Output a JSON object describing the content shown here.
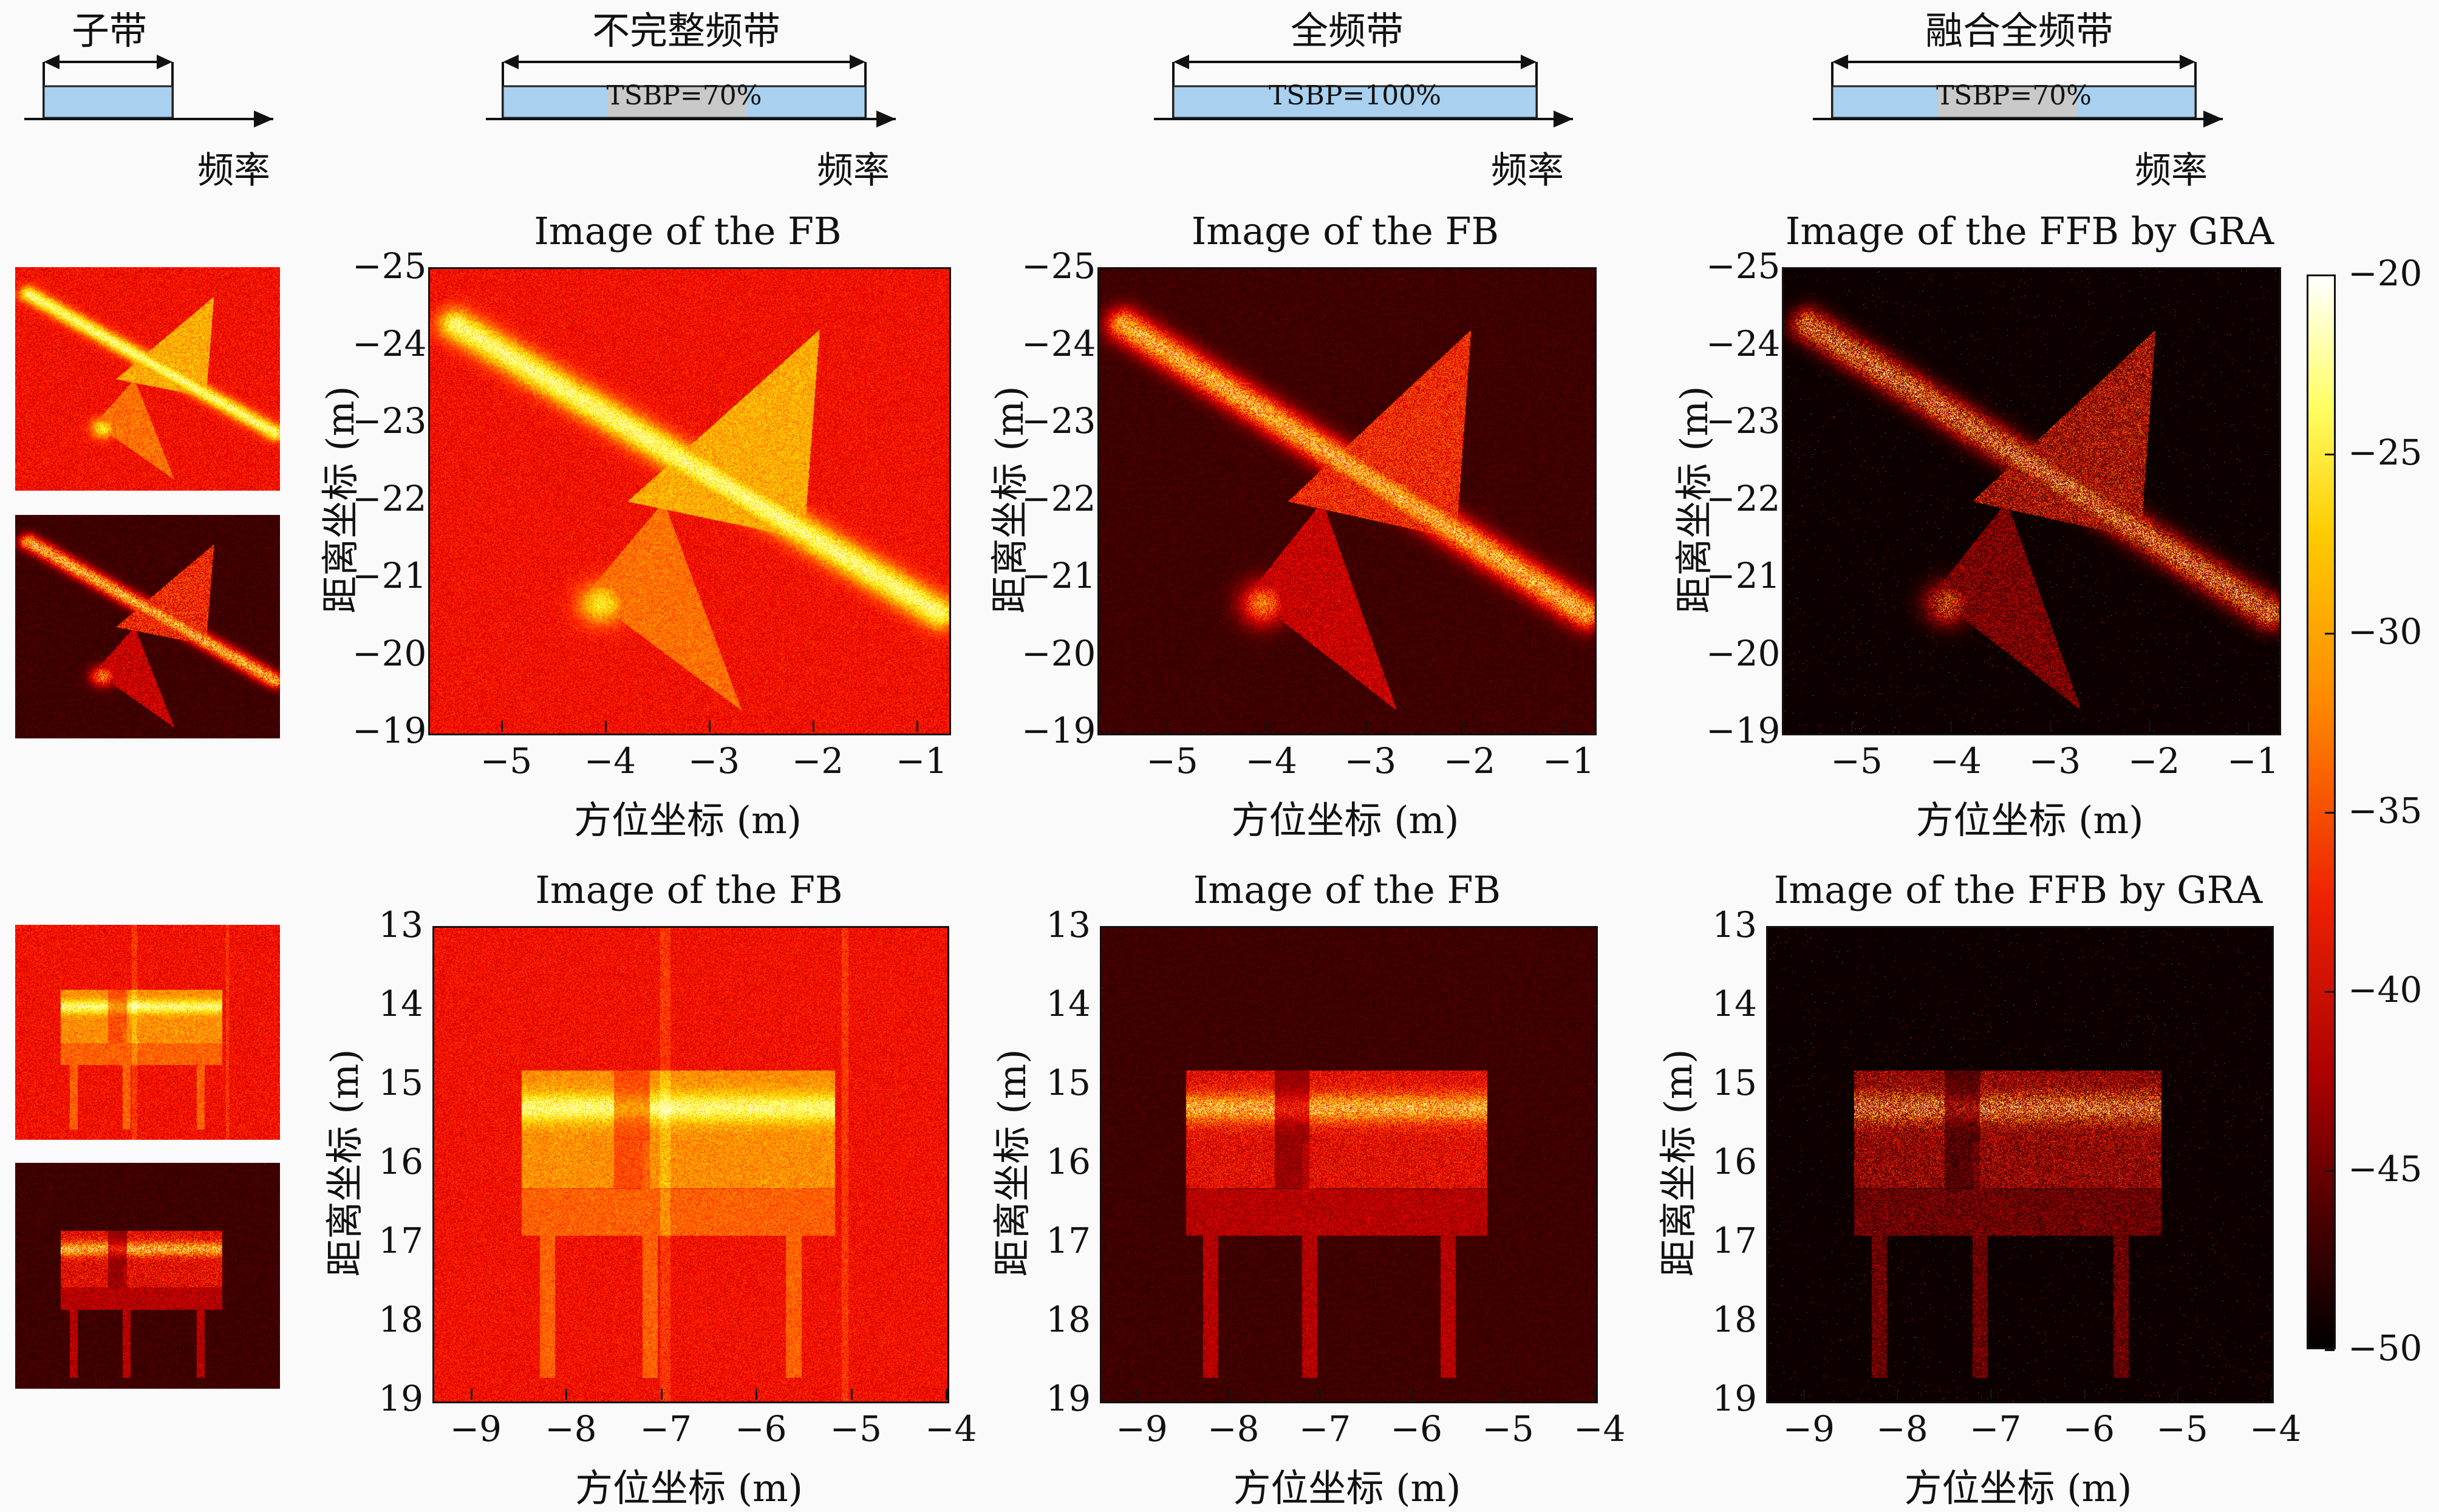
{
  "bands": [
    {
      "title": "子带",
      "freq": "频率",
      "tsbp": ""
    },
    {
      "title": "不完整频带",
      "freq": "频率",
      "tsbp": "TSBP=70%"
    },
    {
      "title": "全频带",
      "freq": "频率",
      "tsbp": "TSBP=100%"
    },
    {
      "title": "融合全频带",
      "freq": "频率",
      "tsbp": "TSBP=70%"
    }
  ],
  "colormap": "hot",
  "chart_data": [
    {
      "type": "heatmap",
      "title": "Image of the FB",
      "xlabel": "方位坐标 (m)",
      "ylabel": "距离坐标 (m)",
      "xticks": [
        "−5",
        "−4",
        "−3",
        "−2",
        "−1"
      ],
      "yticks": [
        "−25",
        "−24",
        "−23",
        "−22",
        "−21",
        "−20",
        "−19"
      ],
      "xlim": [
        -5.7,
        -0.7
      ],
      "ylim": [
        -25,
        -19
      ],
      "background": "red"
    },
    {
      "type": "heatmap",
      "title": "Image of the FB",
      "xlabel": "方位坐标 (m)",
      "ylabel": "距离坐标 (m)",
      "xticks": [
        "−5",
        "−4",
        "−3",
        "−2",
        "−1"
      ],
      "yticks": [
        "−25",
        "−24",
        "−23",
        "−22",
        "−21",
        "−20",
        "−19"
      ],
      "xlim": [
        -5.7,
        -0.7
      ],
      "ylim": [
        -25,
        -19
      ],
      "background": "dark"
    },
    {
      "type": "heatmap",
      "title": "Image of the FFB by GRA",
      "xlabel": "方位坐标 (m)",
      "ylabel": "距离坐标 (m)",
      "xticks": [
        "−5",
        "−4",
        "−3",
        "−2",
        "−1"
      ],
      "yticks": [
        "−25",
        "−24",
        "−23",
        "−22",
        "−21",
        "−20",
        "−19"
      ],
      "xlim": [
        -5.7,
        -0.7
      ],
      "ylim": [
        -25,
        -19
      ],
      "background": "black"
    },
    {
      "type": "heatmap",
      "title": "Image of the FB",
      "xlabel": "方位坐标 (m)",
      "ylabel": "距离坐标 (m)",
      "xticks": [
        "−9",
        "−8",
        "−7",
        "−6",
        "−5",
        "−4"
      ],
      "yticks": [
        "13",
        "14",
        "15",
        "16",
        "17",
        "18",
        "19"
      ],
      "xlim": [
        -9.4,
        -4
      ],
      "ylim": [
        13,
        19
      ],
      "background": "red"
    },
    {
      "type": "heatmap",
      "title": "Image of the FB",
      "xlabel": "方位坐标 (m)",
      "ylabel": "距离坐标 (m)",
      "xticks": [
        "−9",
        "−8",
        "−7",
        "−6",
        "−5",
        "−4"
      ],
      "yticks": [
        "13",
        "14",
        "15",
        "16",
        "17",
        "18",
        "19"
      ],
      "xlim": [
        -9.4,
        -4
      ],
      "ylim": [
        13,
        19
      ],
      "background": "dark"
    },
    {
      "type": "heatmap",
      "title": "Image of the FFB by GRA",
      "xlabel": "方位坐标 (m)",
      "ylabel": "距离坐标 (m)",
      "xticks": [
        "−9",
        "−8",
        "−7",
        "−6",
        "−5",
        "−4"
      ],
      "yticks": [
        "13",
        "14",
        "15",
        "16",
        "17",
        "18",
        "19"
      ],
      "xlim": [
        -9.4,
        -4
      ],
      "ylim": [
        13,
        19
      ],
      "background": "black"
    }
  ],
  "colorbar": {
    "ticks": [
      "−20",
      "−25",
      "−30",
      "−35",
      "−40",
      "−45",
      "−50"
    ],
    "range": [
      -50,
      -20
    ]
  }
}
